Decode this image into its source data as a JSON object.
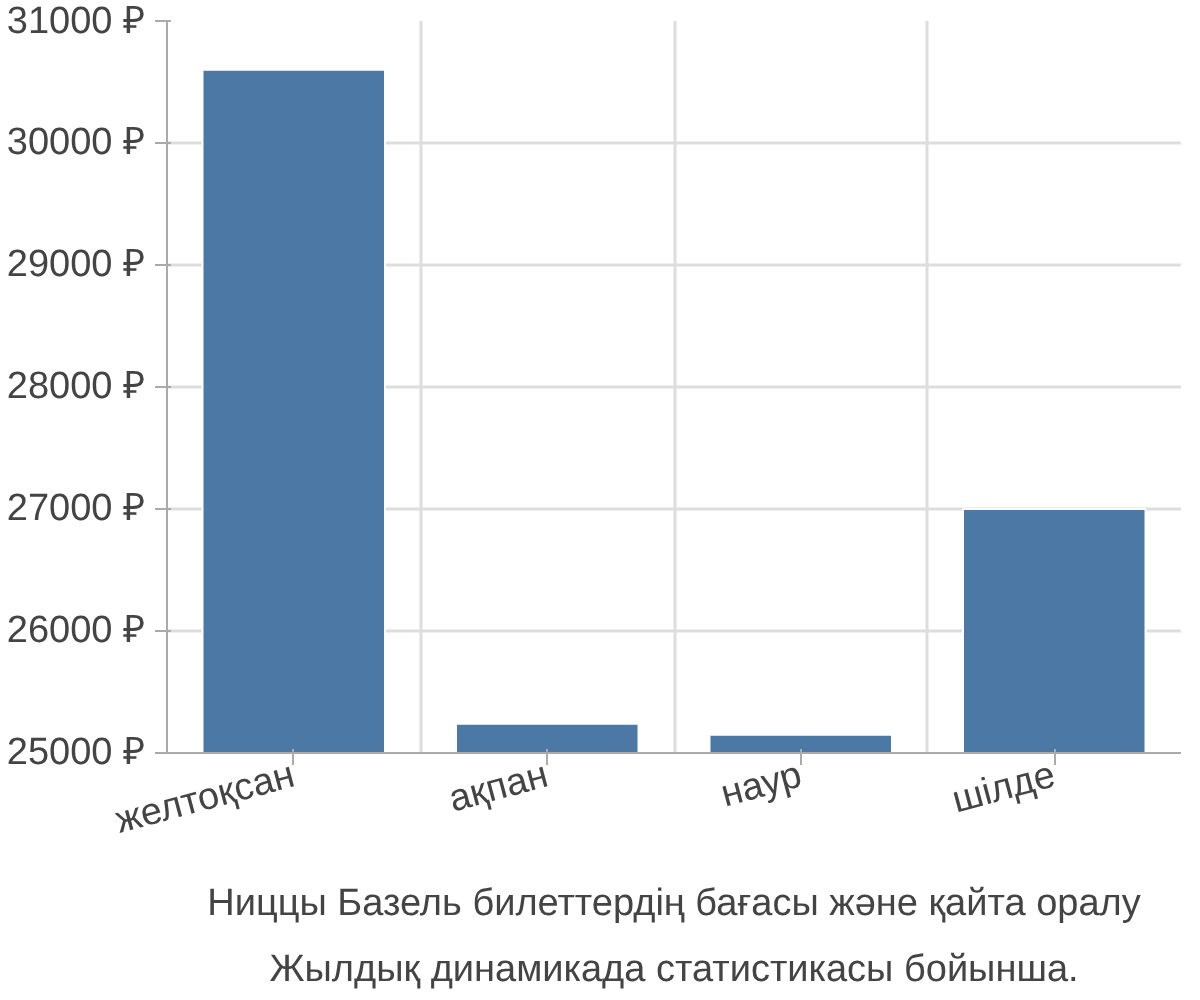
{
  "chart_data": {
    "type": "bar",
    "categories": [
      "желтоқсан",
      "ақпан",
      "наур",
      "шілде"
    ],
    "values": [
      30600,
      25240,
      25150,
      27000
    ],
    "color": "#4c78a6",
    "ylim": [
      25000,
      31000
    ],
    "yticks": [
      {
        "value": 25000,
        "label": "25000 ₽"
      },
      {
        "value": 26000,
        "label": "26000 ₽"
      },
      {
        "value": 27000,
        "label": "27000 ₽"
      },
      {
        "value": 28000,
        "label": "28000 ₽"
      },
      {
        "value": 29000,
        "label": "29000 ₽"
      },
      {
        "value": 30000,
        "label": "30000 ₽"
      },
      {
        "value": 31000,
        "label": "31000 ₽"
      }
    ],
    "grid": true,
    "annotations": [
      "Ниццы Базель билеттердің бағасы және қайта оралу",
      "Жылдық динамикада статистикасы бойынша."
    ]
  }
}
